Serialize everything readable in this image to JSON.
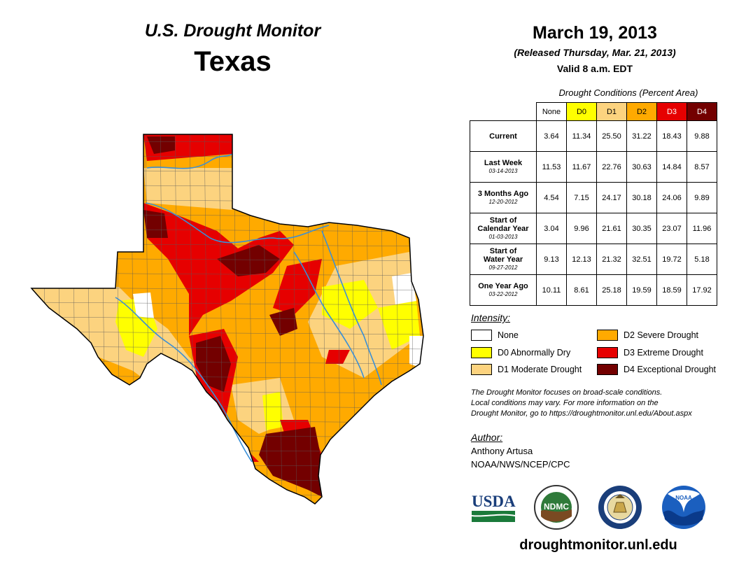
{
  "header": {
    "brand": "U.S. Drought Monitor",
    "state": "Texas",
    "date": "March 19, 2013",
    "released": "(Released Thursday, Mar. 21, 2013)",
    "valid": "Valid 8 a.m. EDT"
  },
  "table": {
    "title": "Drought Conditions (Percent Area)",
    "columns": [
      "None",
      "D0",
      "D1",
      "D2",
      "D3",
      "D4"
    ],
    "column_colors": [
      "#ffffff",
      "#ffff00",
      "#fcd37f",
      "#ffaa00",
      "#e60000",
      "#730000"
    ],
    "rows": [
      {
        "label": "Current",
        "sub": "",
        "values": [
          "3.64",
          "11.34",
          "25.50",
          "31.22",
          "18.43",
          "9.88"
        ]
      },
      {
        "label": "Last Week",
        "sub": "03-14-2013",
        "values": [
          "11.53",
          "11.67",
          "22.76",
          "30.63",
          "14.84",
          "8.57"
        ]
      },
      {
        "label": "3 Months Ago",
        "sub": "12-20-2012",
        "values": [
          "4.54",
          "7.15",
          "24.17",
          "30.18",
          "24.06",
          "9.89"
        ]
      },
      {
        "label": "Start of\nCalendar Year",
        "sub": "01-03-2013",
        "values": [
          "3.04",
          "9.96",
          "21.61",
          "30.35",
          "23.07",
          "11.96"
        ]
      },
      {
        "label": "Start of\nWater Year",
        "sub": "09-27-2012",
        "values": [
          "9.13",
          "12.13",
          "21.32",
          "32.51",
          "19.72",
          "5.18"
        ]
      },
      {
        "label": "One Year Ago",
        "sub": "03-22-2012",
        "values": [
          "10.11",
          "8.61",
          "25.18",
          "19.59",
          "18.59",
          "17.92"
        ]
      }
    ]
  },
  "legend": {
    "title": "Intensity:",
    "items": [
      {
        "label": "None",
        "color": "#ffffff"
      },
      {
        "label": "D0 Abnormally Dry",
        "color": "#ffff00"
      },
      {
        "label": "D1 Moderate Drought",
        "color": "#fcd37f"
      },
      {
        "label": "D2 Severe Drought",
        "color": "#ffaa00"
      },
      {
        "label": "D3 Extreme Drought",
        "color": "#e60000"
      },
      {
        "label": "D4 Exceptional Drought",
        "color": "#730000"
      }
    ]
  },
  "note": {
    "line1": "The Drought Monitor focuses on broad-scale conditions.",
    "line2": "Local conditions may vary. For more information on the",
    "line3": "Drought Monitor, go to https://droughtmonitor.unl.edu/About.aspx"
  },
  "author": {
    "heading": "Author:",
    "name": "Anthony Artusa",
    "org": "NOAA/NWS/NCEP/CPC"
  },
  "logos": {
    "usda": "USDA",
    "ndmc": "NDMC",
    "noaa": "NOAA"
  },
  "footer": {
    "url": "droughtmonitor.unl.edu"
  },
  "colors": {
    "river": "#3a8fd6",
    "county_line": "#5a5a5a"
  }
}
